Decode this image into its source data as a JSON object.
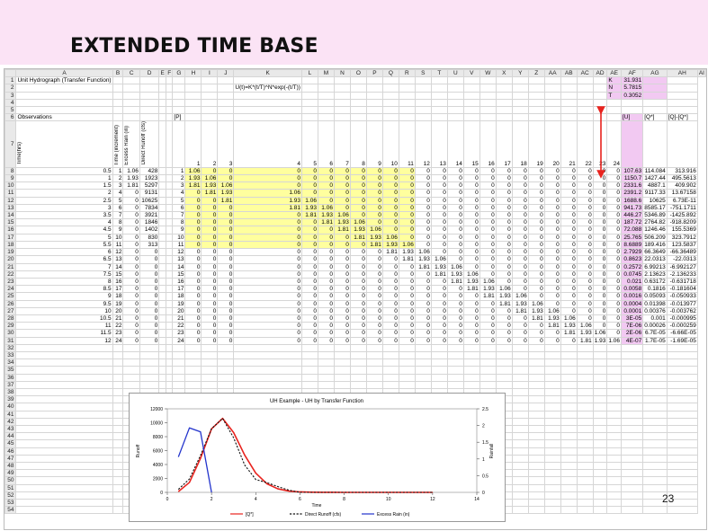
{
  "slide": {
    "title": "EXTENDED TIME BASE",
    "page_number": "23"
  },
  "sheet": {
    "col_headers": [
      "",
      "A",
      "B",
      "C",
      "D",
      "E",
      "F",
      "G",
      "H",
      "I",
      "J",
      "K",
      "L",
      "M",
      "N",
      "O",
      "P",
      "Q",
      "R",
      "S",
      "T",
      "U",
      "V",
      "W",
      "X",
      "Y",
      "Z",
      "AA",
      "AB",
      "AC",
      "AD",
      "AE",
      "AF",
      "AG",
      "AH",
      "AI"
    ],
    "r1_title": "Unit Hydrograph (Transfer Function)",
    "formula": "U(t)=K*(t/T)^N*exp(-(t/T))",
    "params": [
      [
        "K",
        "31.931"
      ],
      [
        "N",
        "5.7815"
      ],
      [
        "T",
        "0.3052"
      ]
    ],
    "observations_label": "Observations",
    "p_label": "[P]",
    "u_label": "[U]",
    "qstar_label": "[Q*]",
    "diff_label": "[Q]-[Q*]",
    "vertical_headers": [
      "Time(hrs)",
      "Time (increment)",
      "Excess Rain (in)",
      "Direct Runoff (cfs)"
    ],
    "p_cols": [
      "1",
      "2",
      "3",
      "4",
      "5",
      "6",
      "7",
      "8",
      "9",
      "10",
      "11",
      "12",
      "13",
      "14",
      "15",
      "16",
      "17",
      "18",
      "19",
      "20",
      "21",
      "22",
      "23",
      "24"
    ],
    "obs_rows": [
      [
        "8",
        "0.5",
        "1",
        "1.06",
        "428"
      ],
      [
        "9",
        "1",
        "2",
        "1.93",
        "1923"
      ],
      [
        "10",
        "1.5",
        "3",
        "1.81",
        "5297"
      ],
      [
        "11",
        "2",
        "4",
        "0",
        "9131"
      ],
      [
        "12",
        "2.5",
        "5",
        "0",
        "10625"
      ],
      [
        "13",
        "3",
        "6",
        "0",
        "7834"
      ],
      [
        "14",
        "3.5",
        "7",
        "0",
        "3921"
      ],
      [
        "15",
        "4",
        "8",
        "0",
        "1846"
      ],
      [
        "16",
        "4.5",
        "9",
        "0",
        "1402"
      ],
      [
        "17",
        "5",
        "10",
        "0",
        "830"
      ],
      [
        "18",
        "5.5",
        "11",
        "0",
        "313"
      ],
      [
        "19",
        "6",
        "12",
        "0",
        "0"
      ],
      [
        "20",
        "6.5",
        "13",
        "0",
        "0"
      ],
      [
        "21",
        "7",
        "14",
        "0",
        "0"
      ],
      [
        "22",
        "7.5",
        "15",
        "0",
        "0"
      ],
      [
        "23",
        "8",
        "16",
        "0",
        "0"
      ],
      [
        "24",
        "8.5",
        "17",
        "0",
        "0"
      ],
      [
        "25",
        "9",
        "18",
        "0",
        "0"
      ],
      [
        "26",
        "9.5",
        "19",
        "0",
        "0"
      ],
      [
        "27",
        "10",
        "20",
        "0",
        "0"
      ],
      [
        "28",
        "10.5",
        "21",
        "0",
        "0"
      ],
      [
        "29",
        "11",
        "22",
        "0",
        "0"
      ],
      [
        "30",
        "11.5",
        "23",
        "0",
        "0"
      ],
      [
        "31",
        "12",
        "24",
        "0",
        "0"
      ]
    ],
    "right_values": [
      [
        "107.63",
        "114.084",
        "313.916"
      ],
      [
        "1150.7",
        "1427.44",
        "495.5613"
      ],
      [
        "2331.6",
        "4887.1",
        "409.902"
      ],
      [
        "2391.2",
        "9117.33",
        "13.67158"
      ],
      [
        "1688.6",
        "10625",
        "6.73E-11"
      ],
      [
        "941.73",
        "8585.17",
        "-751.1711"
      ],
      [
        "446.27",
        "5346.89",
        "-1425.892"
      ],
      [
        "187.72",
        "2764.82",
        "-918.8209"
      ],
      [
        "72.088",
        "1246.46",
        "155.5369"
      ],
      [
        "25.765",
        "506.209",
        "323.7912"
      ],
      [
        "8.6889",
        "189.416",
        "123.5837"
      ],
      [
        "2.7929",
        "66.3649",
        "-66.36489"
      ],
      [
        "0.8623",
        "22.0313",
        "-22.0313"
      ],
      [
        "0.2572",
        "6.99213",
        "-6.992127"
      ],
      [
        "0.0745",
        "2.13623",
        "-2.136233"
      ],
      [
        "0.021",
        "0.63172",
        "-0.631718"
      ],
      [
        "0.0058",
        "0.1816",
        "-0.181604"
      ],
      [
        "0.0016",
        "0.05093",
        "-0.050933"
      ],
      [
        "0.0004",
        "0.01398",
        "-0.013977"
      ],
      [
        "0.0001",
        "0.00376",
        "-0.003762"
      ],
      [
        "3E-05",
        "0.001",
        "-0.000995"
      ],
      [
        "7E-06",
        "0.00026",
        "-0.000259"
      ],
      [
        "2E-06",
        "6.7E-05",
        "-6.66E-05"
      ],
      [
        "4E-07",
        "1.7E-05",
        "-1.69E-05"
      ]
    ],
    "p_pattern": [
      "1.06",
      "1.93",
      "1.81"
    ],
    "empty_rows": [
      "32",
      "33",
      "34",
      "35",
      "36",
      "37",
      "38",
      "39",
      "40",
      "41",
      "42",
      "43",
      "44",
      "45",
      "46",
      "47",
      "48",
      "49",
      "50",
      "51",
      "52",
      "53",
      "54"
    ],
    "top_rows": [
      "1",
      "2",
      "3",
      "4",
      "5",
      "6",
      "7"
    ]
  },
  "chart_data": {
    "type": "line",
    "title": "UH Example - UH by Transfer Function",
    "xlabel": "Time",
    "ylabel": "Runoff",
    "y2label": "Rainfall",
    "xlim": [
      0,
      14
    ],
    "ylim": [
      0,
      12000
    ],
    "y2lim": [
      0,
      2.5
    ],
    "xticks": [
      "0",
      "2",
      "4",
      "6",
      "8",
      "10",
      "12",
      "14"
    ],
    "yticks": [
      "0",
      "2000",
      "4000",
      "6000",
      "8000",
      "10000",
      "12000"
    ],
    "y2ticks": [
      "0",
      "0.5",
      "1",
      "1.5",
      "2",
      "2.5"
    ],
    "legend_position": "bottom",
    "series": [
      {
        "name": "[Q*]",
        "color": "#e8231e",
        "axis": "left",
        "x": [
          0.5,
          1,
          1.5,
          2,
          2.5,
          3,
          3.5,
          4,
          4.5,
          5,
          5.5,
          6,
          6.5,
          7,
          7.5,
          8,
          8.5,
          9,
          9.5,
          10,
          10.5,
          11,
          11.5,
          12
        ],
        "y": [
          114.084,
          1427.44,
          4887.1,
          9117.33,
          10625,
          8585.17,
          5346.89,
          2764.82,
          1246.46,
          506.209,
          189.416,
          66.3649,
          22.0313,
          6.99213,
          2.13623,
          0.63172,
          0.1816,
          0.05093,
          0.01398,
          0.00376,
          0.001,
          0.00026,
          6.7e-05,
          1.7e-05
        ]
      },
      {
        "name": "Direct Runoff (cfs)",
        "color": "#111111",
        "axis": "left",
        "x": [
          0.5,
          1,
          1.5,
          2,
          2.5,
          3,
          3.5,
          4,
          4.5,
          5,
          5.5,
          6,
          6.5,
          7,
          7.5,
          8,
          8.5,
          9,
          9.5,
          10,
          10.5,
          11,
          11.5,
          12
        ],
        "y": [
          428,
          1923,
          5297,
          9131,
          10625,
          7834,
          3921,
          1846,
          1402,
          830,
          313,
          0,
          0,
          0,
          0,
          0,
          0,
          0,
          0,
          0,
          0,
          0,
          0,
          0
        ]
      },
      {
        "name": "Excess Rain (in)",
        "color": "#2233cc",
        "axis": "right",
        "x": [
          0.5,
          1,
          1.5,
          2,
          2.5,
          3,
          3.5,
          4,
          4.5,
          5,
          5.5,
          6,
          6.5,
          7,
          7.5,
          8,
          8.5,
          9,
          9.5,
          10,
          10.5,
          11,
          11.5,
          12
        ],
        "y": [
          1.06,
          1.93,
          1.81,
          0,
          0,
          0,
          0,
          0,
          0,
          0,
          0,
          0,
          0,
          0,
          0,
          0,
          0,
          0,
          0,
          0,
          0,
          0,
          0,
          0
        ]
      }
    ]
  }
}
